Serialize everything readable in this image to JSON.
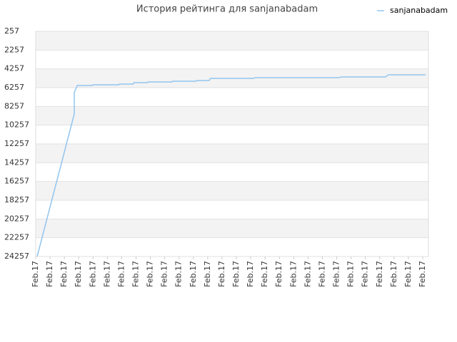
{
  "chart_data": {
    "type": "line",
    "title": "История рейтинга для sanjanabadam",
    "series": [
      {
        "name": "sanjanabadam",
        "color": "#92c5ef",
        "x": [
          0.1,
          2.69,
          2.69,
          2.9,
          3.95,
          3.99,
          5.8,
          5.85,
          6.8,
          6.85,
          7.8,
          7.85,
          9.5,
          9.55,
          11.2,
          11.25,
          12.1,
          12.2,
          15.2,
          15.3,
          21.2,
          21.3,
          24.4,
          24.6,
          27.2
        ],
        "values": [
          24257,
          9067,
          6790,
          6030,
          6030,
          5950,
          5950,
          5874,
          5874,
          5726,
          5726,
          5650,
          5650,
          5574,
          5574,
          5497,
          5497,
          5270,
          5270,
          5194,
          5194,
          5118,
          5118,
          4890,
          4890
        ]
      }
    ],
    "xlim": [
      0,
      27.4
    ],
    "xticks": [
      {
        "value": 0,
        "label": "Feb.17"
      },
      {
        "value": 1,
        "label": "Feb.17"
      },
      {
        "value": 2,
        "label": "Feb.17"
      },
      {
        "value": 3,
        "label": "Feb.17"
      },
      {
        "value": 4,
        "label": "Feb.17"
      },
      {
        "value": 5,
        "label": "Feb.17"
      },
      {
        "value": 6,
        "label": "Feb.17"
      },
      {
        "value": 7,
        "label": "Feb.17"
      },
      {
        "value": 8,
        "label": "Feb.17"
      },
      {
        "value": 9,
        "label": "Feb.17"
      },
      {
        "value": 10,
        "label": "Feb.17"
      },
      {
        "value": 11,
        "label": "Feb.17"
      },
      {
        "value": 12,
        "label": "Feb.17"
      },
      {
        "value": 13,
        "label": "Feb.17"
      },
      {
        "value": 14,
        "label": "Feb.17"
      },
      {
        "value": 15,
        "label": "Feb.17"
      },
      {
        "value": 16,
        "label": "Feb.17"
      },
      {
        "value": 17,
        "label": "Feb.17"
      },
      {
        "value": 18,
        "label": "Feb.17"
      },
      {
        "value": 19,
        "label": "Feb.17"
      },
      {
        "value": 20,
        "label": "Feb.17"
      },
      {
        "value": 21,
        "label": "Feb.17"
      },
      {
        "value": 22,
        "label": "Feb.17"
      },
      {
        "value": 23,
        "label": "Feb.17"
      },
      {
        "value": 24,
        "label": "Feb.17"
      },
      {
        "value": 25,
        "label": "Feb.17"
      },
      {
        "value": 26,
        "label": "Feb.17"
      },
      {
        "value": 27,
        "label": "Feb.17"
      }
    ],
    "ylim": [
      24257,
      257
    ],
    "yticks": [
      257,
      2257,
      4257,
      6257,
      8257,
      10257,
      12257,
      14257,
      16257,
      18257,
      20257,
      22257,
      24257
    ],
    "grid": true,
    "legend": "top-right"
  }
}
